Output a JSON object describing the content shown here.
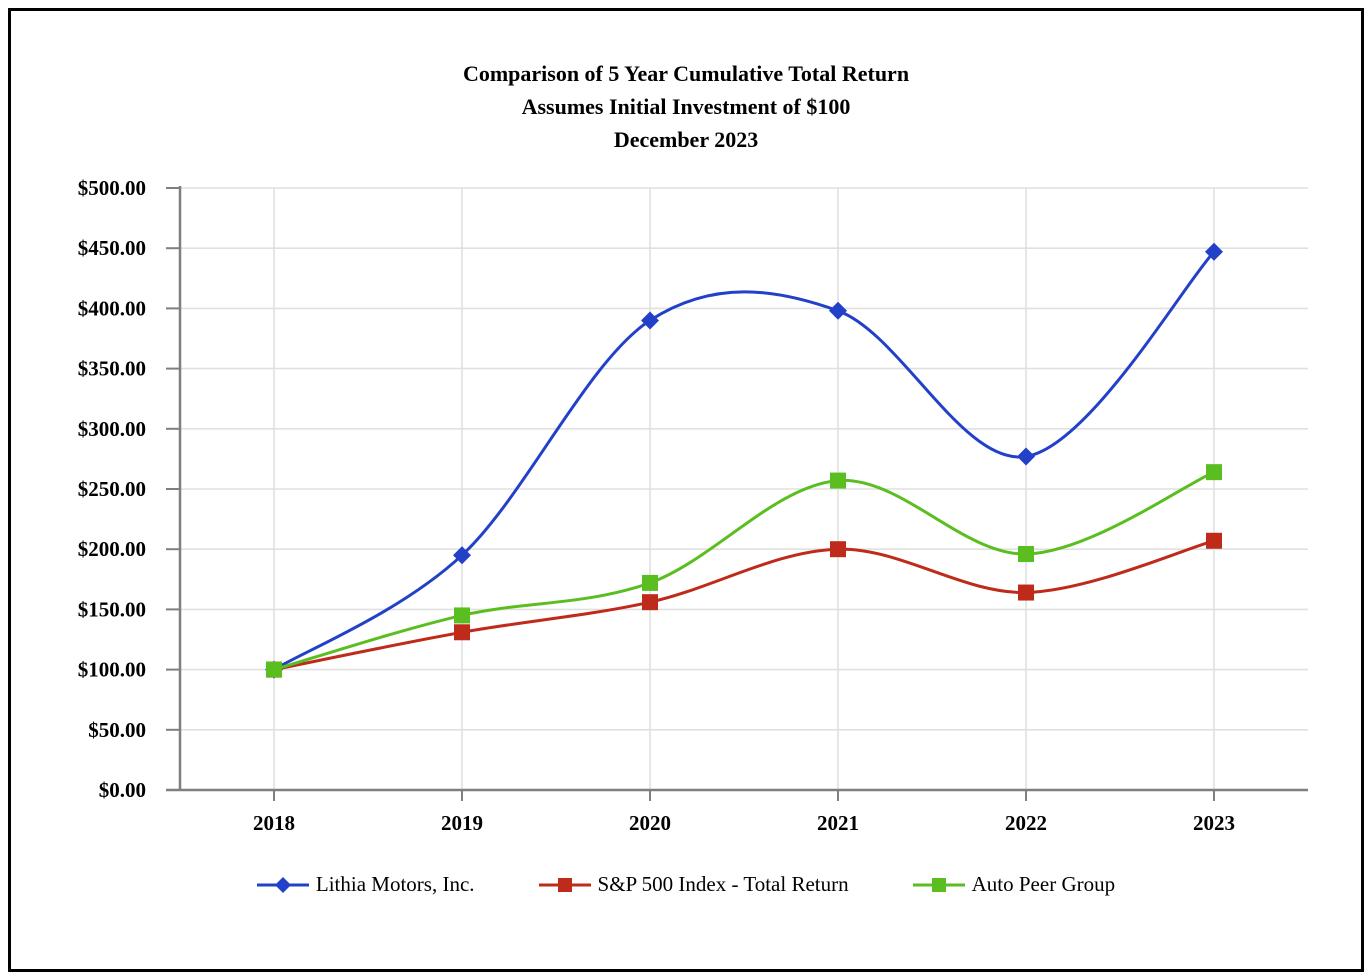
{
  "page": {
    "title_lines": [
      "Comparison of 5 Year Cumulative Total Return",
      "Assumes Initial Investment of $100",
      "December 2023"
    ]
  },
  "chart_data": {
    "type": "line",
    "title": "Comparison of 5 Year Cumulative Total Return",
    "subtitle": "Assumes Initial Investment of $100",
    "period_label": "December 2023",
    "categories": [
      "2018",
      "2019",
      "2020",
      "2021",
      "2022",
      "2023"
    ],
    "series": [
      {
        "name": "Lithia Motors, Inc.",
        "marker": "diamond",
        "color": "#2240C8",
        "values": [
          100,
          195,
          390,
          398,
          277,
          447
        ]
      },
      {
        "name": "S&P 500 Index - Total Return",
        "marker": "square",
        "color": "#BE2B1B",
        "values": [
          100,
          131,
          156,
          200,
          164,
          207
        ]
      },
      {
        "name": "Auto Peer Group",
        "marker": "square",
        "color": "#5BBE20",
        "values": [
          100,
          145,
          172,
          257,
          196,
          264
        ]
      }
    ],
    "xlabel": "",
    "ylabel": "",
    "ylim": [
      0,
      500
    ],
    "ytick_step": 50,
    "y_tick_labels": [
      "$0.00",
      "$50.00",
      "$100.00",
      "$150.00",
      "$200.00",
      "$250.00",
      "$300.00",
      "$350.00",
      "$400.00",
      "$450.00",
      "$500.00"
    ],
    "grid": true,
    "line_smoothing": true,
    "legend_position": "bottom",
    "colors": {
      "grid": "#E0E0E0",
      "axis": "#7F7F7F",
      "text": "#000000"
    }
  }
}
